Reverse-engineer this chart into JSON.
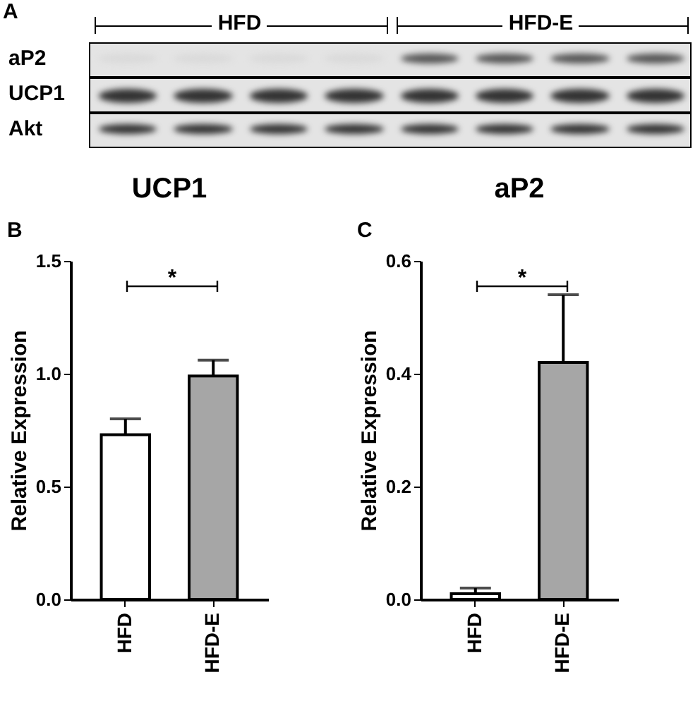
{
  "chart_data": [
    {
      "type": "other",
      "title": "A",
      "categories": [
        "HFD",
        "HFD-E"
      ],
      "y_categories": [
        "aP2",
        "UCP1",
        "Akt"
      ]
    },
    {
      "type": "bar",
      "title": "UCP1",
      "ylabel": "Relative Expression",
      "categories": [
        "HFD",
        "HFD-E"
      ],
      "values": [
        0.73,
        0.99
      ],
      "colors": [
        "#ffffff",
        "#a6a6a6"
      ],
      "errors": [
        [
          0.73,
          0.8
        ],
        [
          0.99,
          1.06
        ]
      ],
      "ylim": [
        0,
        1.5
      ],
      "yticks": [
        {
          "value": 0,
          "label": "0.0"
        },
        {
          "value": 0.5,
          "label": "0.5"
        },
        {
          "value": 1,
          "label": "1.0"
        },
        {
          "value": 1.5,
          "label": "1.5"
        }
      ],
      "annotations": [
        "B",
        "*"
      ]
    },
    {
      "type": "bar",
      "title": "aP2",
      "ylabel": "Relative Expression",
      "categories": [
        "HFD",
        "HFD-E"
      ],
      "values": [
        0.01,
        0.42
      ],
      "colors": [
        "#ffffff",
        "#a6a6a6"
      ],
      "errors": [
        [
          0.01,
          0.02
        ],
        [
          0.42,
          0.54
        ]
      ],
      "ylim": [
        0,
        0.6
      ],
      "yticks": [
        {
          "value": 0,
          "label": "0.0"
        },
        {
          "value": 0.2,
          "label": "0.2"
        },
        {
          "value": 0.4,
          "label": "0.4"
        },
        {
          "value": 0.6,
          "label": "0.6"
        }
      ],
      "annotations": [
        "C",
        "*"
      ]
    }
  ]
}
